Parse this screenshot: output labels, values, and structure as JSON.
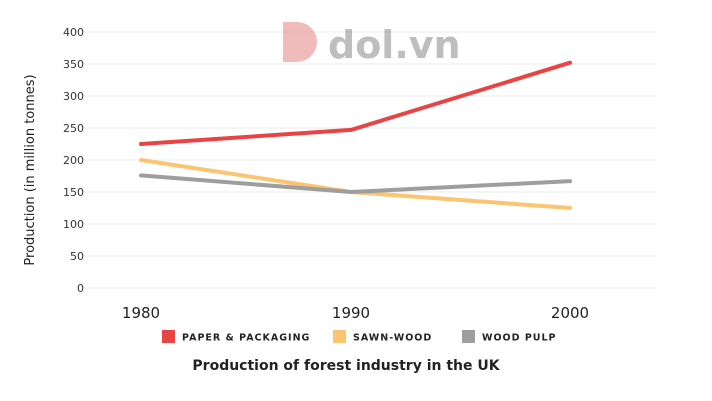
{
  "watermark": "dol.vn",
  "chart_data": {
    "type": "line",
    "title": "Production of forest industry in the UK",
    "xlabel": "",
    "ylabel": "Production (in million tonnes)",
    "categories": [
      "1980",
      "1990",
      "2000"
    ],
    "yticks": [
      "0",
      "50",
      "100",
      "150",
      "200",
      "250",
      "300",
      "350",
      "400"
    ],
    "ylim": [
      0,
      400
    ],
    "grid": true,
    "legend_position": "bottom",
    "series": [
      {
        "name": "PAPER & PACKAGING",
        "color": "#e94444",
        "values": [
          225,
          247,
          352
        ]
      },
      {
        "name": "SAWN-WOOD",
        "color": "#fbc470",
        "values": [
          200,
          150,
          125
        ]
      },
      {
        "name": "WOOD PULP",
        "color": "#9e9e9e",
        "values": [
          176,
          150,
          167
        ]
      }
    ]
  }
}
